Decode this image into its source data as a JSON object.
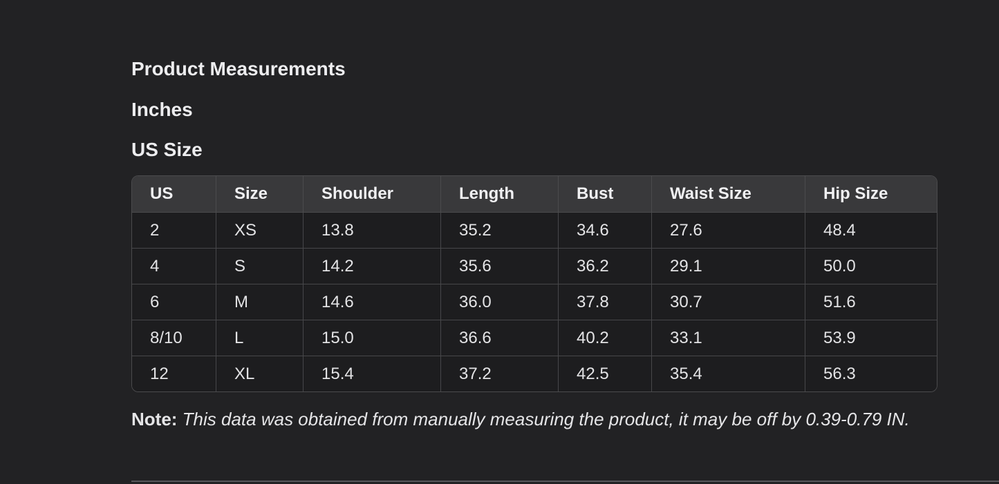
{
  "page": {
    "title": "Product Measurements",
    "unit_label": "Inches",
    "size_system_label": "US Size",
    "note_label": "Note:",
    "note_text": " This data was obtained from manually measuring the product, it may be off by 0.39-0.79 IN."
  },
  "colors": {
    "page_background": "#222224",
    "table_header_background": "#39393b",
    "table_cell_background": "#1d1d1f",
    "table_border": "#4b4b4d",
    "text": "#e7e7e9",
    "divider": "#58585c"
  },
  "chart_data": {
    "type": "table",
    "title": "Product Measurements",
    "unit": "Inches",
    "size_system": "US Size",
    "columns": [
      "US",
      "Size",
      "Shoulder",
      "Length",
      "Bust",
      "Waist Size",
      "Hip Size"
    ],
    "rows": [
      [
        "2",
        "XS",
        "13.8",
        "35.2",
        "34.6",
        "27.6",
        "48.4"
      ],
      [
        "4",
        "S",
        "14.2",
        "35.6",
        "36.2",
        "29.1",
        "50.0"
      ],
      [
        "6",
        "M",
        "14.6",
        "36.0",
        "37.8",
        "30.7",
        "51.6"
      ],
      [
        "8/10",
        "L",
        "15.0",
        "36.6",
        "40.2",
        "33.1",
        "53.9"
      ],
      [
        "12",
        "XL",
        "15.4",
        "37.2",
        "42.5",
        "35.4",
        "56.3"
      ]
    ]
  }
}
